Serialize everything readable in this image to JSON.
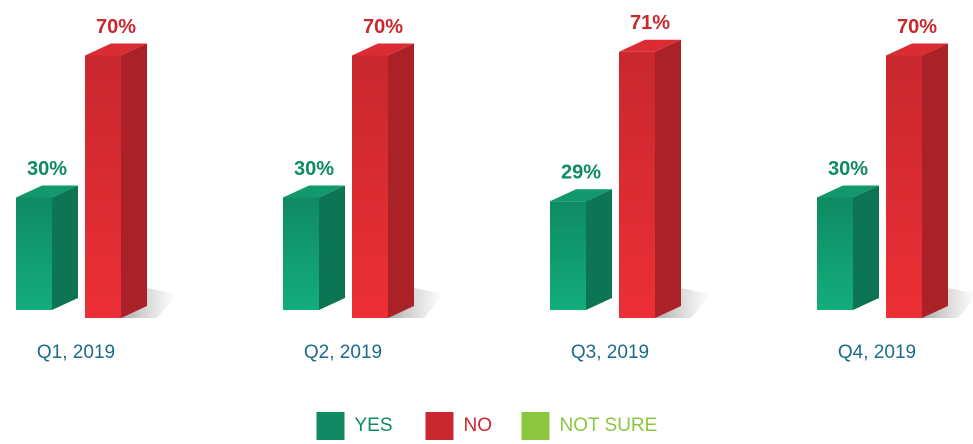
{
  "chart_data": {
    "type": "bar3d",
    "categories": [
      "Q1, 2019",
      "Q2, 2019",
      "Q3, 2019",
      "Q4, 2019"
    ],
    "series": [
      {
        "name": "YES",
        "color": "#0f8a63",
        "values": [
          30,
          30,
          29,
          30
        ],
        "value_labels": [
          "30%",
          "30%",
          "29%",
          "30%"
        ]
      },
      {
        "name": "NO",
        "color": "#c8282e",
        "values": [
          70,
          70,
          71,
          70
        ],
        "value_labels": [
          "70%",
          "70%",
          "71%",
          "70%"
        ]
      },
      {
        "name": "NOT SURE",
        "color": "#8dc63f",
        "values": [
          0,
          0,
          0,
          0
        ]
      }
    ],
    "ylim": [
      0,
      80
    ],
    "legend": "bottom"
  }
}
